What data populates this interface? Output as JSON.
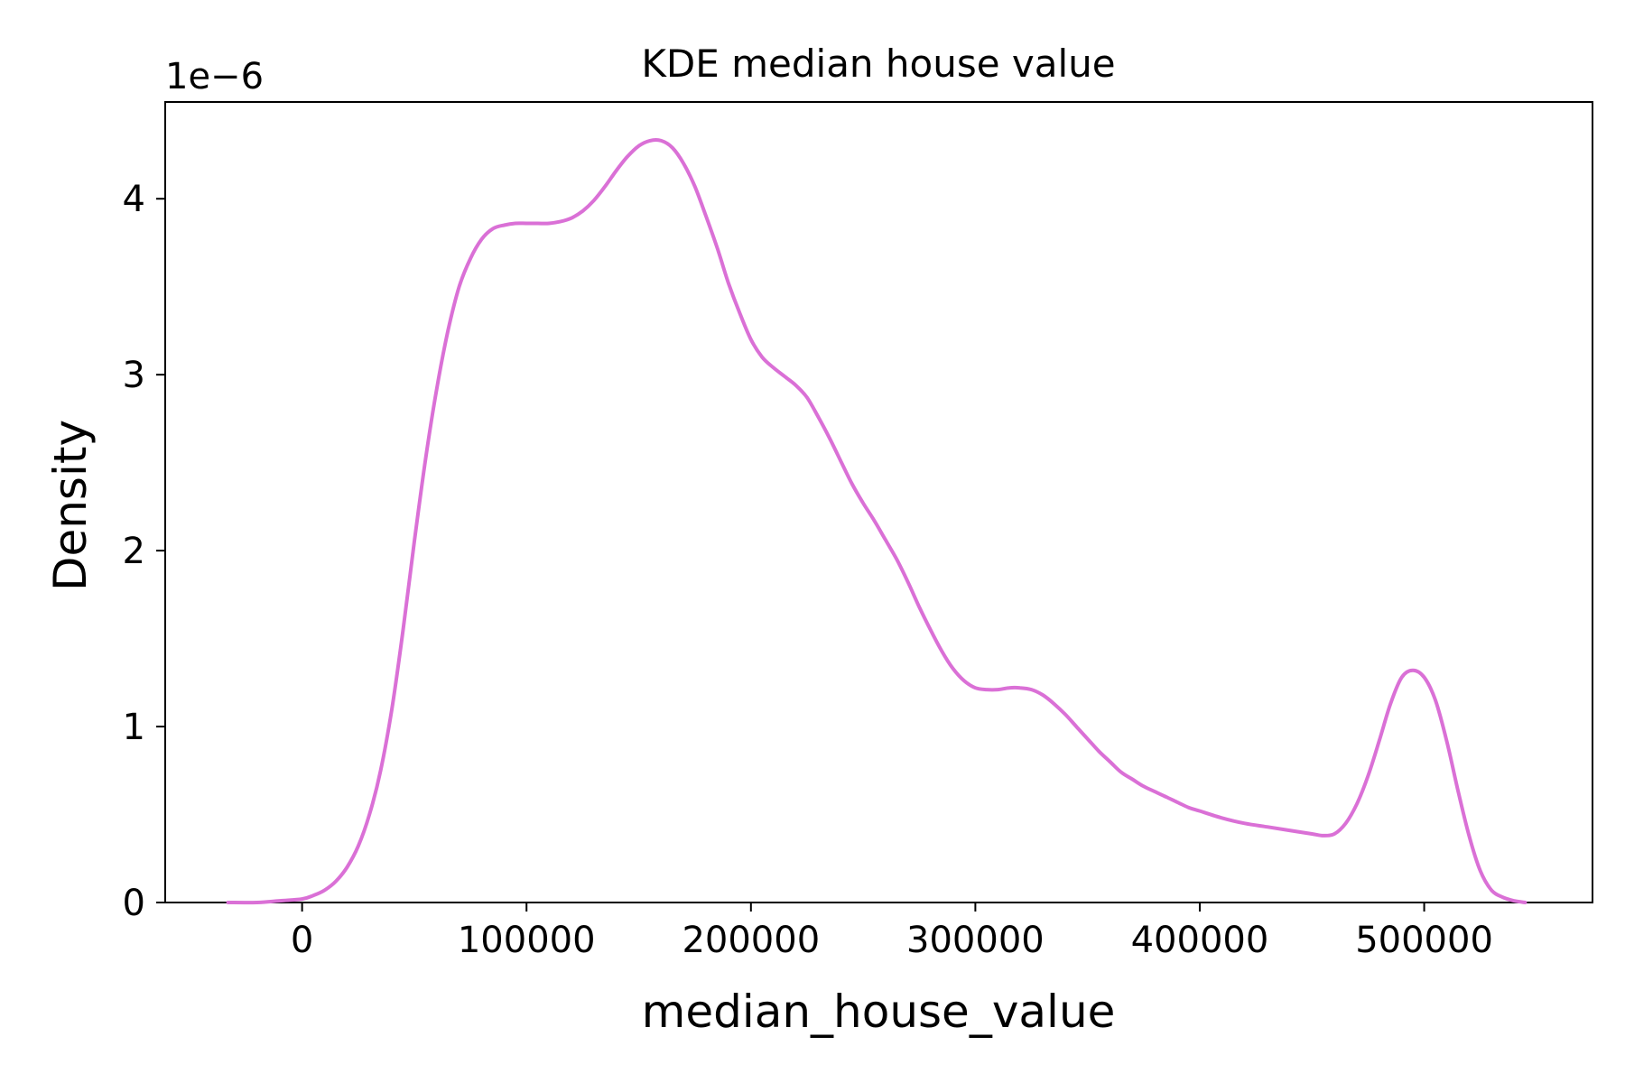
{
  "chart_data": {
    "type": "line",
    "title": "KDE median house value",
    "xlabel": "median_house_value",
    "ylabel": "Density",
    "y_offset_label": "1e−6",
    "y_scale": 1e-06,
    "xlim": [
      -61000,
      575000
    ],
    "ylim": [
      0,
      4.55
    ],
    "grid": false,
    "legend": "none",
    "line_color": "#da70d6",
    "x_ticks": [
      0,
      100000,
      200000,
      300000,
      400000,
      500000
    ],
    "x_tick_labels": [
      "0",
      "100000",
      "200000",
      "300000",
      "400000",
      "500000"
    ],
    "y_ticks": [
      0,
      1,
      2,
      3,
      4
    ],
    "y_tick_labels": [
      "0",
      "1",
      "2",
      "3",
      "4"
    ],
    "series": [
      {
        "x": [
          -33000,
          -20000,
          -10000,
          0,
          5000,
          10000,
          15000,
          20000,
          25000,
          30000,
          35000,
          40000,
          45000,
          50000,
          55000,
          60000,
          65000,
          70000,
          75000,
          80000,
          85000,
          90000,
          95000,
          100000,
          105000,
          110000,
          115000,
          120000,
          125000,
          130000,
          135000,
          140000,
          145000,
          150000,
          155000,
          160000,
          165000,
          170000,
          175000,
          180000,
          185000,
          190000,
          195000,
          200000,
          205000,
          210000,
          215000,
          220000,
          225000,
          230000,
          235000,
          240000,
          245000,
          250000,
          255000,
          260000,
          265000,
          270000,
          275000,
          280000,
          285000,
          290000,
          295000,
          300000,
          305000,
          310000,
          315000,
          320000,
          325000,
          330000,
          335000,
          340000,
          345000,
          350000,
          355000,
          360000,
          365000,
          370000,
          375000,
          380000,
          385000,
          390000,
          395000,
          400000,
          410000,
          420000,
          430000,
          440000,
          450000,
          455000,
          460000,
          465000,
          470000,
          475000,
          480000,
          485000,
          490000,
          495000,
          500000,
          505000,
          510000,
          515000,
          520000,
          525000,
          530000,
          535000,
          540000,
          545000
        ],
        "y": [
          0.0,
          0.0,
          0.01,
          0.02,
          0.04,
          0.07,
          0.12,
          0.2,
          0.32,
          0.5,
          0.75,
          1.1,
          1.55,
          2.05,
          2.52,
          2.92,
          3.25,
          3.5,
          3.66,
          3.77,
          3.83,
          3.85,
          3.86,
          3.86,
          3.86,
          3.86,
          3.87,
          3.89,
          3.93,
          3.99,
          4.07,
          4.16,
          4.24,
          4.3,
          4.33,
          4.33,
          4.29,
          4.2,
          4.07,
          3.9,
          3.72,
          3.52,
          3.35,
          3.2,
          3.1,
          3.04,
          2.99,
          2.94,
          2.87,
          2.76,
          2.64,
          2.51,
          2.38,
          2.27,
          2.17,
          2.06,
          1.95,
          1.82,
          1.68,
          1.55,
          1.43,
          1.33,
          1.26,
          1.22,
          1.21,
          1.21,
          1.22,
          1.22,
          1.21,
          1.18,
          1.13,
          1.07,
          1.0,
          0.93,
          0.86,
          0.8,
          0.74,
          0.7,
          0.66,
          0.63,
          0.6,
          0.57,
          0.54,
          0.52,
          0.48,
          0.45,
          0.43,
          0.41,
          0.39,
          0.38,
          0.39,
          0.45,
          0.56,
          0.72,
          0.92,
          1.13,
          1.28,
          1.32,
          1.28,
          1.15,
          0.92,
          0.64,
          0.38,
          0.18,
          0.07,
          0.03,
          0.01,
          0.0
        ]
      }
    ]
  }
}
